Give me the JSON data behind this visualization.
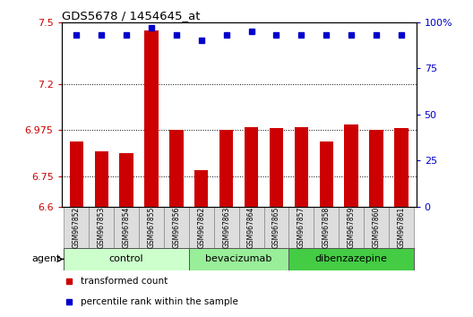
{
  "title": "GDS5678 / 1454645_at",
  "samples": [
    "GSM967852",
    "GSM967853",
    "GSM967854",
    "GSM967855",
    "GSM967856",
    "GSM967862",
    "GSM967863",
    "GSM967864",
    "GSM967865",
    "GSM967857",
    "GSM967858",
    "GSM967859",
    "GSM967860",
    "GSM967861"
  ],
  "bar_values": [
    6.92,
    6.87,
    6.86,
    7.46,
    6.975,
    6.78,
    6.975,
    6.99,
    6.985,
    6.99,
    6.92,
    7.0,
    6.975,
    6.985
  ],
  "percentile_values": [
    93,
    93,
    93,
    97,
    93,
    90,
    93,
    95,
    93,
    93,
    93,
    93,
    93,
    93
  ],
  "bar_color": "#cc0000",
  "dot_color": "#0000cc",
  "ylim_left": [
    6.6,
    7.5
  ],
  "ylim_right": [
    0,
    100
  ],
  "yticks_left": [
    6.6,
    6.75,
    6.975,
    7.2,
    7.5
  ],
  "yticks_right": [
    0,
    25,
    50,
    75,
    100
  ],
  "groups": [
    {
      "label": "control",
      "start": 0,
      "end": 5,
      "color": "#ccffcc"
    },
    {
      "label": "bevacizumab",
      "start": 5,
      "end": 9,
      "color": "#99ee99"
    },
    {
      "label": "dibenzazepine",
      "start": 9,
      "end": 14,
      "color": "#44cc44"
    }
  ],
  "agent_label": "agent",
  "legend_bar_label": "transformed count",
  "legend_dot_label": "percentile rank within the sample",
  "tick_label_color_left": "#cc0000",
  "tick_label_color_right": "#0000cc",
  "sample_bg_color": "#dddddd",
  "grid_linestyle": "dotted"
}
